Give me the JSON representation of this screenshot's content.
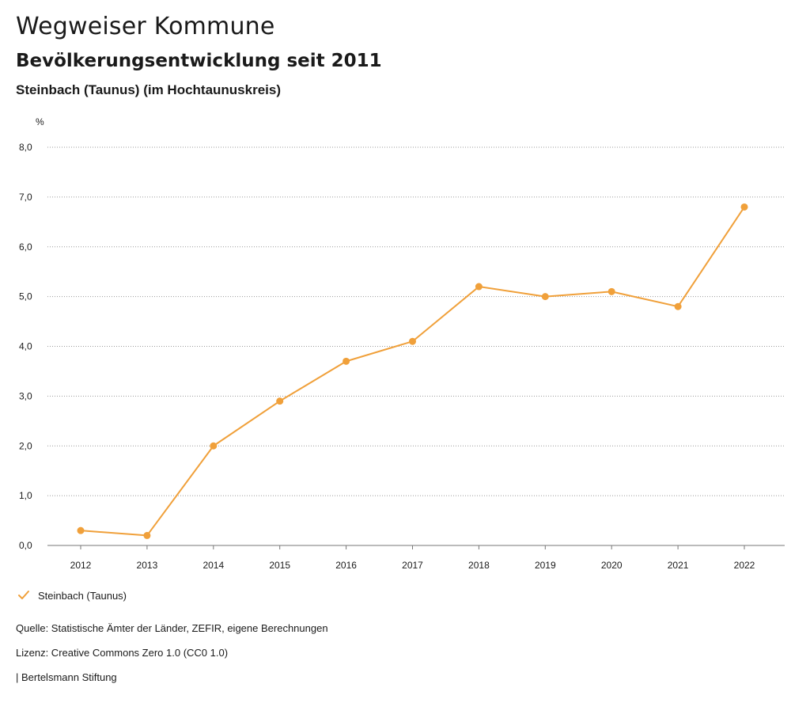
{
  "header": {
    "title": "Wegweiser Kommune",
    "subtitle": "Bevölkerungsentwicklung seit 2011",
    "region": "Steinbach (Taunus) (im Hochtaunuskreis)"
  },
  "colors": {
    "series": "#F0A03A",
    "grid": "#9a9a9a",
    "text": "#1a1a1a"
  },
  "chart_data": {
    "type": "line",
    "ylabel": "%",
    "xlabel": "",
    "ylim": [
      0,
      8
    ],
    "yticks": [
      "0,0",
      "1,0",
      "2,0",
      "3,0",
      "4,0",
      "5,0",
      "6,0",
      "7,0",
      "8,0"
    ],
    "grid": true,
    "legend_position": "bottom-left",
    "categories": [
      "2012",
      "2013",
      "2014",
      "2015",
      "2016",
      "2017",
      "2018",
      "2019",
      "2020",
      "2021",
      "2022"
    ],
    "series": [
      {
        "name": "Steinbach (Taunus)",
        "values": [
          0.3,
          0.2,
          2.0,
          2.9,
          3.7,
          4.1,
          5.2,
          5.0,
          5.1,
          4.8,
          6.8
        ]
      }
    ]
  },
  "legend": {
    "icon": "checkmark-icon",
    "label": "Steinbach (Taunus)"
  },
  "footer": {
    "source": "Quelle: Statistische Ämter der Länder, ZEFIR, eigene Berechnungen",
    "license": "Lizenz: Creative Commons Zero 1.0 (CC0 1.0)",
    "publisher": "| Bertelsmann Stiftung"
  }
}
